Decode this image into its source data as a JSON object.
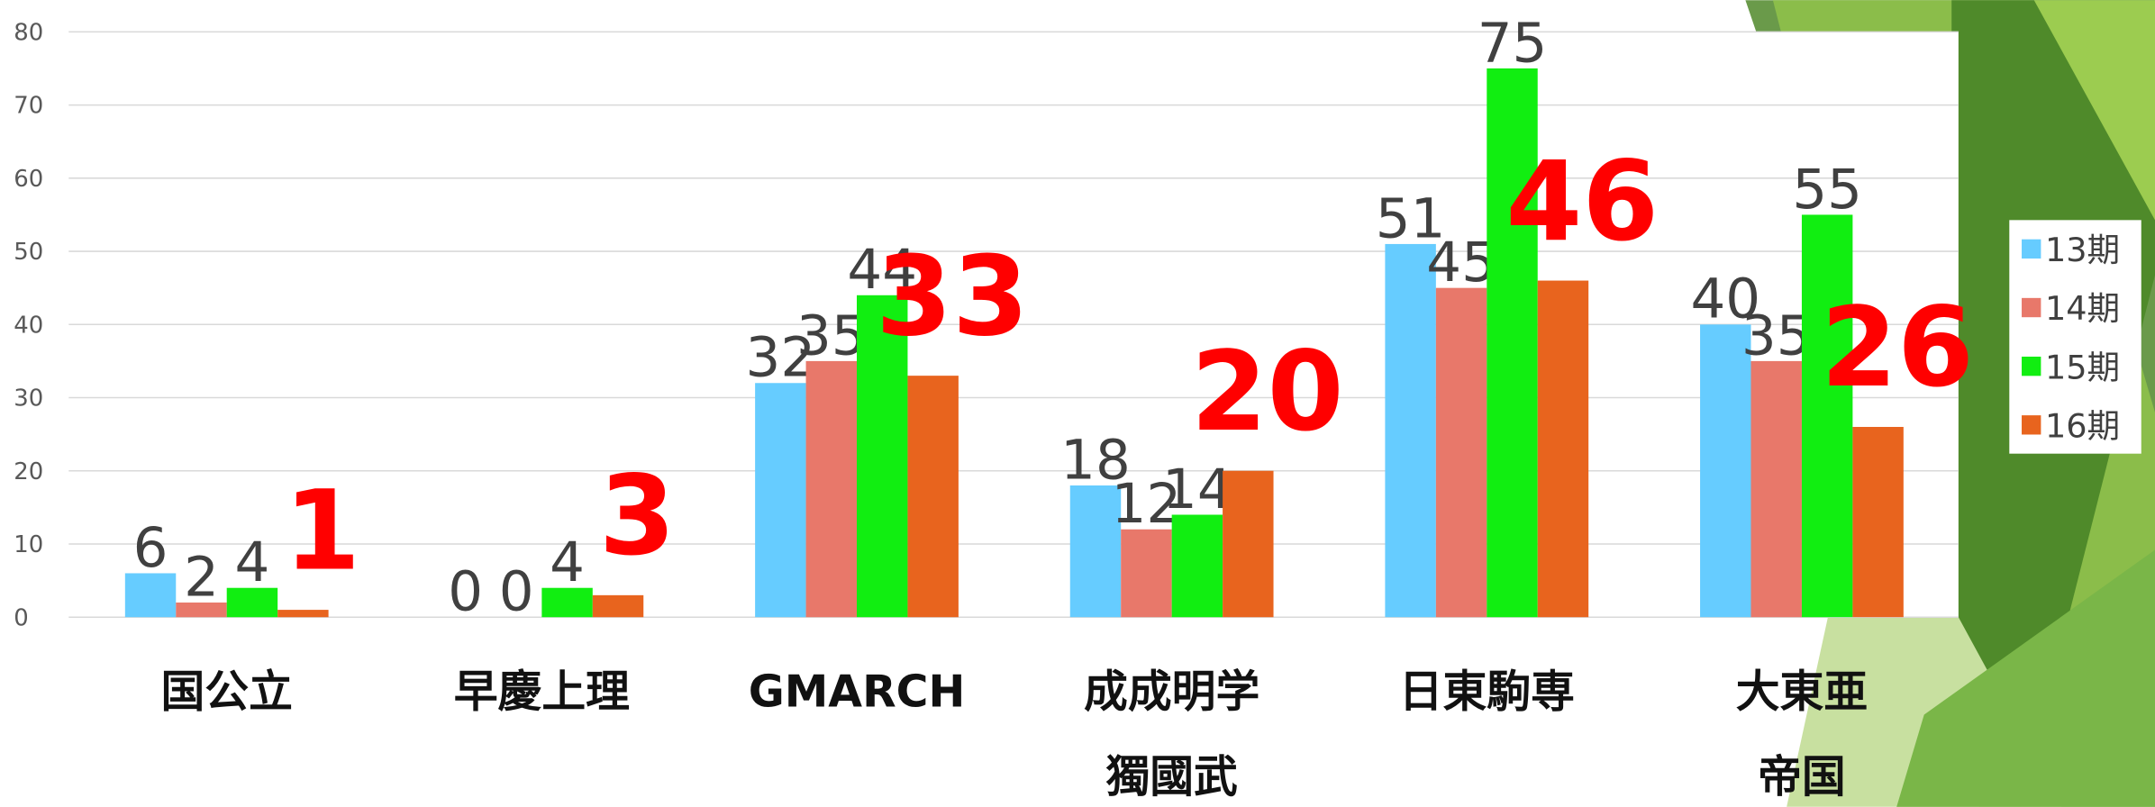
{
  "chart_data": {
    "type": "bar",
    "categories": [
      "国公立",
      "早慶上理",
      "GMARCH",
      "成成明学\n獨國武",
      "日東駒専",
      "大東亜\n帝国"
    ],
    "series": [
      {
        "name": "13期",
        "color": "#66ccff",
        "values": [
          6,
          0,
          32,
          18,
          51,
          40
        ]
      },
      {
        "name": "14期",
        "color": "#e8786a",
        "values": [
          2,
          0,
          35,
          12,
          45,
          35
        ]
      },
      {
        "name": "15期",
        "color": "#11ee11",
        "values": [
          4,
          4,
          44,
          14,
          75,
          55
        ]
      },
      {
        "name": "16期",
        "color": "#e8641e",
        "values": [
          1,
          3,
          33,
          20,
          46,
          26
        ]
      }
    ],
    "ylim": [
      0,
      80
    ],
    "yticks": [
      0,
      10,
      20,
      30,
      40,
      50,
      60,
      70,
      80
    ],
    "grid": true,
    "legend": "right"
  }
}
